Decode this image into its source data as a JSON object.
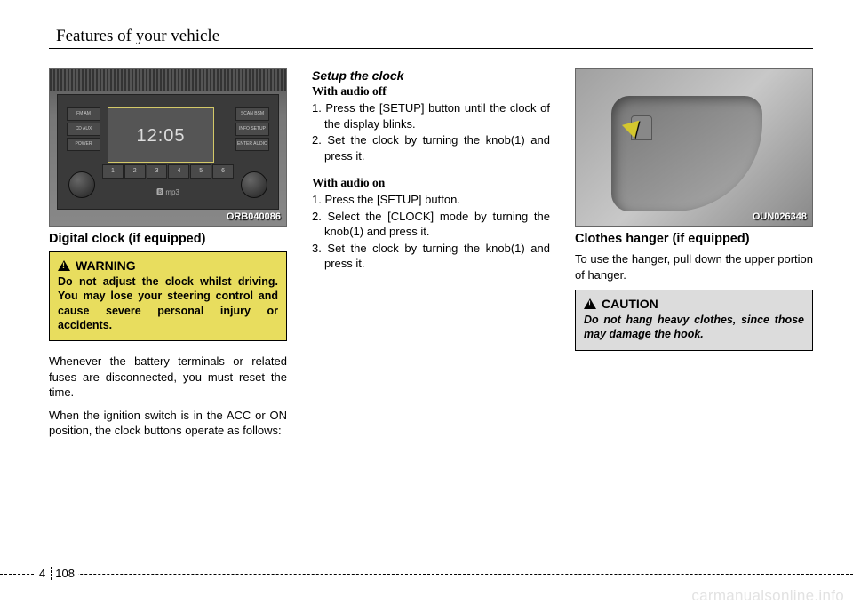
{
  "header": {
    "title": "Features of your vehicle"
  },
  "col1": {
    "photo_label": "ORB040086",
    "clock_time": "12:05",
    "heading": "Digital clock (if equipped)",
    "warning_head": "WARNING",
    "warning_body": "Do not adjust the clock whilst driving. You may lose your steering control and cause severe personal injury or accidents.",
    "para1": "Whenever the battery terminals or related fuses are disconnected, you must reset the time.",
    "para2": "When the ignition switch is in the ACC or ON position, the clock buttons operate as follows:"
  },
  "col2": {
    "heading": "Setup the clock",
    "sub1": "With audio off",
    "list1": [
      "1. Press the [SETUP] button until the clock of the display blinks.",
      "2. Set the clock by turning the knob(1) and press it."
    ],
    "sub2": "With audio on",
    "list2": [
      "1. Press the [SETUP] button.",
      "2. Select the [CLOCK] mode by turning the knob(1) and press it.",
      "3. Set the clock by turning the knob(1) and press it."
    ]
  },
  "col3": {
    "photo_label": "OUN026348",
    "heading": "Clothes hanger (if equipped)",
    "para": "To use the hanger, pull down the upper portion of hanger.",
    "caution_head": "CAUTION",
    "caution_body": "Do not hang heavy clothes, since those may damage the hook."
  },
  "footer": {
    "chapter": "4",
    "page": "108"
  },
  "watermark": "carmanualsonline.info",
  "colors": {
    "warning_bg": "#e8dd5e",
    "caution_bg": "#dcdcdc"
  }
}
